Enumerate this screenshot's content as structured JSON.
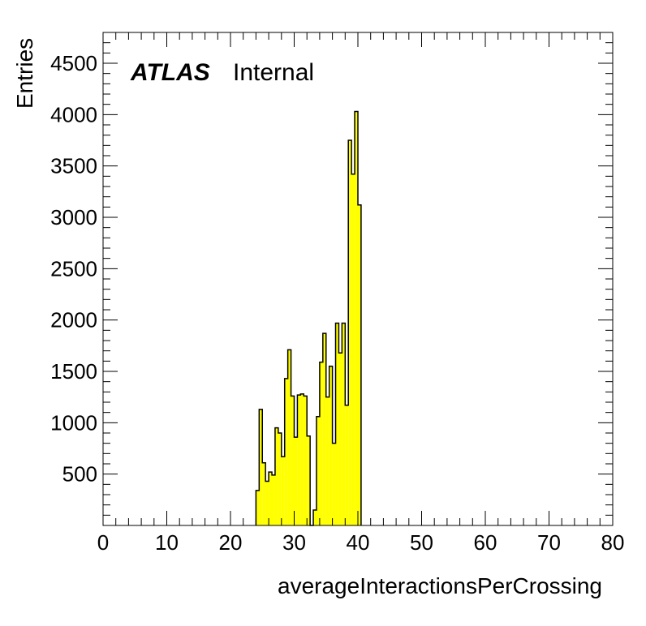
{
  "chart_data": {
    "type": "bar",
    "title": "",
    "xlabel": "averageInteractionsPerCrossing",
    "ylabel": "Entries",
    "xlim": [
      0,
      80
    ],
    "ylim": [
      0,
      4800
    ],
    "x_ticks": [
      0,
      10,
      20,
      30,
      40,
      50,
      60,
      70,
      80
    ],
    "y_ticks": [
      500,
      1000,
      1500,
      2000,
      2500,
      3000,
      3500,
      4000,
      4500
    ],
    "bin_width": 0.5,
    "fill_color": "#ffff00",
    "line_color": "#000000",
    "legend": "none",
    "grid": false,
    "bins": [
      {
        "x": 24.0,
        "value": 340
      },
      {
        "x": 24.5,
        "value": 1130
      },
      {
        "x": 25.0,
        "value": 610
      },
      {
        "x": 25.5,
        "value": 430
      },
      {
        "x": 26.0,
        "value": 520
      },
      {
        "x": 26.5,
        "value": 490
      },
      {
        "x": 27.0,
        "value": 950
      },
      {
        "x": 27.5,
        "value": 900
      },
      {
        "x": 28.0,
        "value": 670
      },
      {
        "x": 28.5,
        "value": 1430
      },
      {
        "x": 29.0,
        "value": 1710
      },
      {
        "x": 29.5,
        "value": 1260
      },
      {
        "x": 30.0,
        "value": 860
      },
      {
        "x": 30.5,
        "value": 1270
      },
      {
        "x": 31.0,
        "value": 1280
      },
      {
        "x": 31.5,
        "value": 1260
      },
      {
        "x": 32.0,
        "value": 870
      },
      {
        "x": 32.5,
        "value": 0
      },
      {
        "x": 33.0,
        "value": 150
      },
      {
        "x": 33.5,
        "value": 1060
      },
      {
        "x": 34.0,
        "value": 1590
      },
      {
        "x": 34.5,
        "value": 1870
      },
      {
        "x": 35.0,
        "value": 1250
      },
      {
        "x": 35.5,
        "value": 1550
      },
      {
        "x": 36.0,
        "value": 800
      },
      {
        "x": 36.5,
        "value": 1970
      },
      {
        "x": 37.0,
        "value": 1680
      },
      {
        "x": 37.5,
        "value": 1970
      },
      {
        "x": 38.0,
        "value": 1170
      },
      {
        "x": 38.5,
        "value": 3750
      },
      {
        "x": 39.0,
        "value": 3420
      },
      {
        "x": 39.5,
        "value": 4030
      },
      {
        "x": 40.0,
        "value": 3120
      }
    ]
  },
  "labels": {
    "atlas": "ATLAS",
    "internal": "Internal"
  }
}
